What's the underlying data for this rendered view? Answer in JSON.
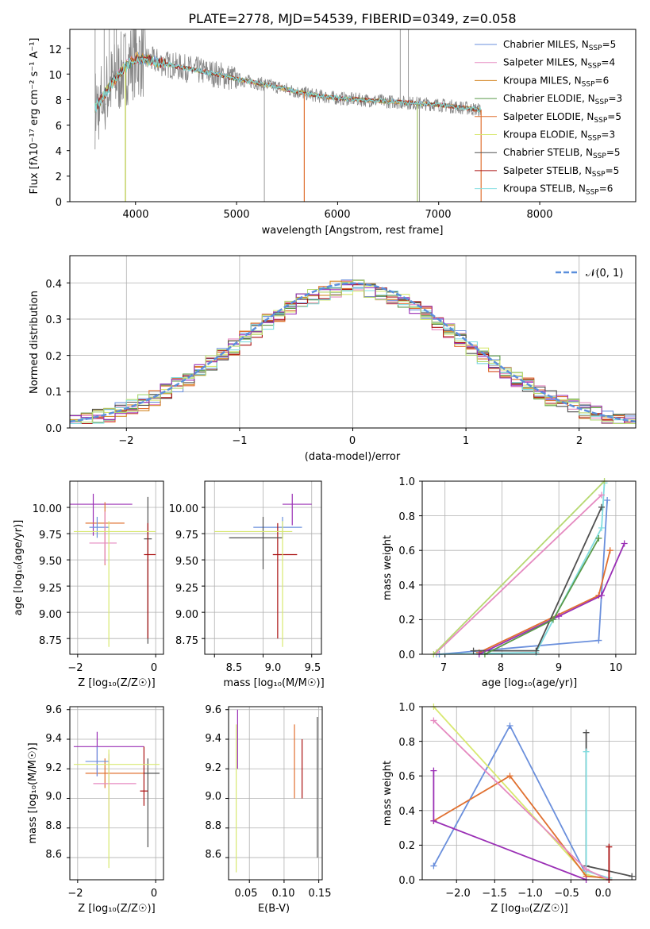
{
  "colors": [
    "#6a8fdc",
    "#e58ac0",
    "#d58a2a",
    "#5a9a4a",
    "#e07030",
    "#d8e870",
    "#505050",
    "#aa1010",
    "#80dde0",
    "#9a2fb5",
    "#b6d870"
  ],
  "spectrum": {
    "title": "PLATE=2778, MJD=54539, FIBERID=0349, z=0.058",
    "xlabel": "wavelength [Angstrom, rest frame]",
    "ylabel": "Flux [fλ10⁻¹⁷ erg cm⁻² s⁻¹ A⁻¹]",
    "xticks": [
      "4000",
      "5000",
      "6000",
      "7000",
      "8000"
    ],
    "yticks": [
      "0",
      "2",
      "4",
      "6",
      "8",
      "10",
      "12"
    ],
    "legend": [
      {
        "label": "Chabrier MILES, N",
        "sub": "SSP",
        "tail": "=5"
      },
      {
        "label": "Salpeter MILES, N",
        "sub": "SSP",
        "tail": "=4"
      },
      {
        "label": "Kroupa MILES, N",
        "sub": "SSP",
        "tail": "=6"
      },
      {
        "label": "Chabrier ELODIE, N",
        "sub": "SSP",
        "tail": "=3"
      },
      {
        "label": "Salpeter ELODIE, N",
        "sub": "SSP",
        "tail": "=5"
      },
      {
        "label": "Kroupa ELODIE, N",
        "sub": "SSP",
        "tail": "=3"
      },
      {
        "label": "Chabrier STELIB, N",
        "sub": "SSP",
        "tail": "=5"
      },
      {
        "label": "Salpeter STELIB, N",
        "sub": "SSP",
        "tail": "=5"
      },
      {
        "label": "Kroupa STELIB, N",
        "sub": "SSP",
        "tail": "=6"
      }
    ]
  },
  "residuals": {
    "xlabel": "(data-model)/error",
    "ylabel": "Normed distribution",
    "xticks": [
      "−2",
      "−1",
      "0",
      "1",
      "2"
    ],
    "yticks": [
      "0.0",
      "0.1",
      "0.2",
      "0.3",
      "0.4"
    ],
    "legend": "𝒩(0, 1)"
  },
  "age_vs_Z": {
    "xlabel": "Z [log₁₀(Z/Z☉)]",
    "ylabel": "age  [log₁₀(age/yr)]",
    "xticks": [
      "−2",
      "0"
    ],
    "yticks": [
      "8.75",
      "9.00",
      "9.25",
      "9.50",
      "9.75",
      "10.00"
    ]
  },
  "age_vs_mass": {
    "xlabel": "mass [log₁₀(M/M☉)]",
    "xticks": [
      "8.5",
      "9.0",
      "9.5"
    ],
    "yticks": [
      "8.75",
      "9.00",
      "9.25",
      "9.50",
      "9.75",
      "10.00"
    ]
  },
  "weight_vs_age": {
    "xlabel": "age  [log₁₀(age/yr)]",
    "ylabel": "mass weight",
    "xticks": [
      "7",
      "8",
      "9",
      "10"
    ],
    "yticks": [
      "0.0",
      "0.2",
      "0.4",
      "0.6",
      "0.8",
      "1.0"
    ]
  },
  "mass_vs_Z": {
    "xlabel": "Z [log₁₀(Z/Z☉)]",
    "ylabel": "mass [log₁₀(M/M☉)]",
    "xticks": [
      "−2",
      "0"
    ],
    "yticks": [
      "8.6",
      "8.8",
      "9.0",
      "9.2",
      "9.4",
      "9.6"
    ]
  },
  "mass_vs_ebv": {
    "xlabel": "E(B-V)",
    "xticks": [
      "0.05",
      "0.10",
      "0.15"
    ],
    "yticks": [
      "8.6",
      "8.8",
      "9.0",
      "9.2",
      "9.4",
      "9.6"
    ]
  },
  "weight_vs_Z": {
    "xlabel": "Z [log₁₀(Z/Z☉)]",
    "ylabel": "mass weight",
    "xticks": [
      "−2.0",
      "−1.5",
      "−1.0",
      "−0.5",
      "0.0"
    ],
    "yticks": [
      "0.0",
      "0.2",
      "0.4",
      "0.6",
      "0.8",
      "1.0"
    ]
  },
  "chart_data": [
    {
      "type": "line",
      "title": "PLATE=2778, MJD=54539, FIBERID=0349, z=0.058",
      "xlabel": "wavelength [Angstrom, rest frame]",
      "ylabel": "Flux [fλ10⁻¹⁷ erg cm⁻² s⁻¹ A⁻¹]",
      "xlim": [
        3350,
        8950
      ],
      "ylim": [
        0,
        13.5
      ],
      "x": [
        3600,
        3700,
        3800,
        3900,
        4000,
        4200,
        4400,
        4600,
        4800,
        5000,
        5200,
        5400,
        5600,
        5800,
        6000,
        6200,
        6400,
        6600,
        6800,
        7000,
        7200,
        7400
      ],
      "series": [
        {
          "name": "data",
          "values": [
            7.3,
            8.5,
            9.6,
            10.6,
            11.3,
            11.0,
            10.6,
            10.3,
            10.0,
            9.6,
            9.3,
            9.0,
            8.6,
            8.3,
            8.1,
            8.0,
            7.9,
            7.8,
            7.7,
            7.6,
            7.4,
            7.2
          ]
        },
        {
          "name": "Chabrier MILES, NSSP=5",
          "values": [
            7.3,
            8.4,
            9.5,
            10.5,
            11.2,
            10.9,
            10.5,
            10.2,
            9.9,
            9.6,
            9.3,
            9.0,
            8.6,
            8.3,
            8.1,
            8.0,
            7.9,
            7.8,
            7.7,
            7.6,
            7.4,
            7.2
          ]
        }
      ],
      "legend_position": "upper-right",
      "legend": [
        "Chabrier MILES, NSSP=5",
        "Salpeter MILES, NSSP=4",
        "Kroupa MILES, NSSP=6",
        "Chabrier ELODIE, NSSP=3",
        "Salpeter ELODIE, NSSP=5",
        "Kroupa ELODIE, NSSP=3",
        "Chabrier STELIB, NSSP=5",
        "Salpeter STELIB, NSSP=5",
        "Kroupa STELIB, NSSP=6"
      ]
    },
    {
      "type": "line",
      "xlabel": "(data-model)/error",
      "ylabel": "Normed distribution",
      "xlim": [
        -2.5,
        2.5
      ],
      "ylim": [
        0,
        0.475
      ],
      "grid": true,
      "reference": {
        "name": "𝒩(0, 1)",
        "kind": "gaussian",
        "mu": 0,
        "sigma": 1
      },
      "bins": [
        -2.5,
        -2.4,
        -2.3,
        -2.2,
        -2.1,
        -2.0,
        -1.9,
        -1.8,
        -1.7,
        -1.6,
        -1.5,
        -1.4,
        -1.3,
        -1.2,
        -1.1,
        -1.0,
        -0.9,
        -0.8,
        -0.7,
        -0.6,
        -0.5,
        -0.4,
        -0.3,
        -0.2,
        -0.1,
        0.0,
        0.1,
        0.2,
        0.3,
        0.4,
        0.5,
        0.6,
        0.7,
        0.8,
        0.9,
        1.0,
        1.1,
        1.2,
        1.3,
        1.4,
        1.5,
        1.6,
        1.7,
        1.8,
        1.9,
        2.0,
        2.1,
        2.2,
        2.3,
        2.4,
        2.5
      ],
      "legend_position": "upper-right"
    },
    {
      "type": "scatter",
      "xlabel": "Z [log₁₀(Z/Z☉)]",
      "ylabel": "age  [log₁₀(age/yr)]",
      "xlim": [
        -2.2,
        0.2
      ],
      "ylim": [
        8.6,
        10.25
      ],
      "grid": true,
      "points": [
        {
          "x": -1.6,
          "y": 10.03,
          "xerr": [
            0.6,
            1.0
          ],
          "yerr": [
            0.3,
            0.1
          ]
        },
        {
          "x": -1.3,
          "y": 9.85,
          "xerr": [
            0.5,
            0.5
          ],
          "yerr": [
            0.4,
            0.2
          ]
        },
        {
          "x": -1.5,
          "y": 9.81,
          "xerr": [
            0.2,
            0.3
          ],
          "yerr": [
            0.1,
            0.1
          ]
        },
        {
          "x": -1.3,
          "y": 9.66,
          "xerr": [
            0.4,
            0.3
          ],
          "yerr": [
            0.2,
            0.3
          ]
        },
        {
          "x": -0.2,
          "y": 9.7,
          "xerr": [
            0.1,
            0.1
          ],
          "yerr": [
            1.0,
            0.4
          ]
        },
        {
          "x": -0.2,
          "y": 9.55,
          "xerr": [
            0.1,
            0.2
          ],
          "yerr": [
            0.8,
            0.3
          ]
        },
        {
          "x": -1.2,
          "y": 9.77,
          "xerr": [
            0.9,
            1.2
          ],
          "yerr": [
            1.1,
            0.1
          ]
        }
      ]
    },
    {
      "type": "scatter",
      "xlabel": "mass [log₁₀(M/M☉)]",
      "xlim": [
        8.4,
        9.6
      ],
      "ylim": [
        8.6,
        10.25
      ],
      "grid": true,
      "points": [
        {
          "x": 9.2,
          "y": 9.81,
          "xerr": [
            0.3,
            0.2
          ],
          "yerr": [
            0.1,
            0.1
          ]
        },
        {
          "x": 9.3,
          "y": 10.03,
          "xerr": [
            0.1,
            0.2
          ],
          "yerr": [
            0.2,
            0.1
          ]
        },
        {
          "x": 9.15,
          "y": 9.55,
          "xerr": [
            0.05,
            0.2
          ],
          "yerr": [
            0.8,
            0.3
          ]
        },
        {
          "x": 9.0,
          "y": 9.71,
          "xerr": [
            0.35,
            0.2
          ],
          "yerr": [
            0.3,
            0.2
          ]
        },
        {
          "x": 9.2,
          "y": 9.77,
          "xerr": [
            0.7,
            0.1
          ],
          "yerr": [
            1.1,
            0.1
          ]
        }
      ]
    },
    {
      "type": "line",
      "xlabel": "age  [log₁₀(age/yr)]",
      "ylabel": "mass weight",
      "xlim": [
        6.6,
        10.35
      ],
      "ylim": [
        0,
        1.0
      ],
      "grid": true,
      "series": [
        {
          "values": [
            [
              6.9,
              0.0
            ],
            [
              9.7,
              0.08
            ],
            [
              9.85,
              0.89
            ]
          ]
        },
        {
          "values": [
            [
              6.85,
              0.0
            ],
            [
              8.6,
              0.01
            ],
            [
              9.75,
              0.73
            ],
            [
              9.8,
              0.99
            ]
          ]
        },
        {
          "values": [
            [
              7.6,
              0.01
            ],
            [
              9.7,
              0.34
            ],
            [
              9.9,
              0.6
            ]
          ]
        },
        {
          "values": [
            [
              7.5,
              0.02
            ],
            [
              8.6,
              0.02
            ],
            [
              9.75,
              0.85
            ]
          ]
        },
        {
          "values": [
            [
              7.6,
              0.0
            ],
            [
              9.0,
              0.22
            ],
            [
              9.75,
              0.34
            ],
            [
              10.15,
              0.64
            ]
          ]
        },
        {
          "values": [
            [
              7.7,
              0.0
            ],
            [
              8.9,
              0.2
            ],
            [
              9.7,
              0.67
            ]
          ]
        },
        {
          "values": [
            [
              6.85,
              0.01
            ],
            [
              9.75,
              0.92
            ]
          ]
        },
        {
          "values": [
            [
              6.8,
              0.0
            ],
            [
              9.8,
              1.0
            ]
          ]
        }
      ]
    },
    {
      "type": "scatter",
      "xlabel": "Z [log₁₀(Z/Z☉)]",
      "ylabel": "mass [log₁₀(M/M☉)]",
      "xlim": [
        -2.2,
        0.2
      ],
      "ylim": [
        8.45,
        9.62
      ],
      "grid": true,
      "points": [
        {
          "x": -1.5,
          "y": 9.35,
          "xerr": [
            0.6,
            1.2
          ],
          "yerr": [
            0.2,
            0.1
          ]
        },
        {
          "x": -1.3,
          "y": 9.17,
          "xerr": [
            0.5,
            1.0
          ],
          "yerr": [
            0.1,
            0.1
          ]
        },
        {
          "x": -1.5,
          "y": 9.25,
          "xerr": [
            0.3,
            0.3
          ],
          "yerr": [
            0.1,
            0.1
          ]
        },
        {
          "x": -1.2,
          "y": 9.1,
          "xerr": [
            0.4,
            0.7
          ],
          "yerr": [
            0.3,
            0.2
          ]
        },
        {
          "x": -0.2,
          "y": 9.17,
          "xerr": [
            0.1,
            0.3
          ],
          "yerr": [
            0.5,
            0.1
          ]
        },
        {
          "x": -0.3,
          "y": 9.05,
          "xerr": [
            0.1,
            0.1
          ],
          "yerr": [
            0.1,
            0.3
          ]
        },
        {
          "x": -1.2,
          "y": 9.23,
          "xerr": [
            0.9,
            1.3
          ],
          "yerr": [
            0.7,
            0.1
          ]
        }
      ]
    },
    {
      "type": "scatter",
      "xlabel": "E(B-V)",
      "xlim": [
        0.02,
        0.155
      ],
      "ylim": [
        8.45,
        9.62
      ],
      "grid": true,
      "points": [
        {
          "x": 0.033,
          "y": 9.35,
          "yerr": [
            0.15,
            0.25
          ]
        },
        {
          "x": 0.031,
          "y": 9.2,
          "yerr": [
            0.7,
            0.3
          ]
        },
        {
          "x": 0.115,
          "y": 9.3,
          "yerr": [
            0.3,
            0.2
          ]
        },
        {
          "x": 0.126,
          "y": 9.2,
          "yerr": [
            0.2,
            0.2
          ]
        },
        {
          "x": 0.148,
          "y": 9.2,
          "yerr": [
            0.6,
            0.35
          ]
        }
      ]
    },
    {
      "type": "line",
      "xlabel": "Z [log₁₀(Z/Z☉)]",
      "ylabel": "mass weight",
      "xlim": [
        -2.45,
        0.35
      ],
      "ylim": [
        0,
        1.0
      ],
      "grid": true,
      "series": [
        {
          "values": [
            [
              -2.3,
              0.08
            ],
            [
              -1.3,
              0.89
            ],
            [
              -0.3,
              0.03
            ],
            [
              0.0,
              0.0
            ]
          ]
        },
        {
          "values": [
            [
              -2.3,
              1.0
            ],
            [
              -0.3,
              0.03
            ],
            [
              0.0,
              0.0
            ]
          ]
        },
        {
          "values": [
            [
              -2.3,
              0.34
            ],
            [
              -1.3,
              0.6
            ],
            [
              -0.3,
              0.02
            ],
            [
              0.0,
              0.01
            ]
          ]
        },
        {
          "values": [
            [
              -0.3,
              0.85
            ],
            [
              -0.3,
              0.08
            ],
            [
              0.3,
              0.02
            ]
          ]
        },
        {
          "values": [
            [
              -2.3,
              0.63
            ],
            [
              -2.3,
              0.34
            ],
            [
              -0.3,
              0.0
            ]
          ]
        },
        {
          "values": [
            [
              -0.3,
              0.74
            ],
            [
              -0.3,
              0.05
            ],
            [
              0.0,
              0.01
            ]
          ]
        },
        {
          "values": [
            [
              -2.3,
              0.92
            ],
            [
              -0.3,
              0.06
            ],
            [
              0.0,
              0.0
            ]
          ]
        },
        {
          "values": [
            [
              0.0,
              0.19
            ],
            [
              0.0,
              0.0
            ]
          ]
        }
      ]
    }
  ]
}
